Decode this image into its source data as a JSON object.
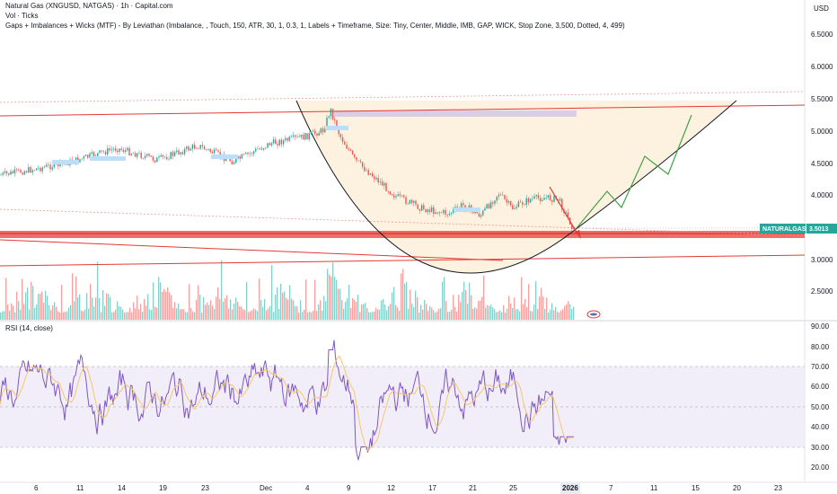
{
  "header": {
    "title": "Natural Gas (XNGUSD, NATGAS) · 1h · Capital.com",
    "volume_label": "Vol · Ticks",
    "indicator_label": "Gaps + Imbalances + Wicks (MTF) - By Leviathan (Imbalance, , Touch, 150, ATR, 30, 1, 0.3, 1, Labels + Timeframe, Size: Tiny, Center, Middle, IMB, GAP, WICK, Stop Zone, 3,500, Dotted, 4, 499)"
  },
  "currency": "USD",
  "price_axis": [
    "6.5000",
    "6.0000",
    "5.5000",
    "5.0000",
    "4.5000",
    "4.0000",
    "3.0000",
    "2.5000"
  ],
  "last_price": {
    "symbol": "NATURALGAS",
    "value": "3.5013"
  },
  "rsi": {
    "label": "RSI (14, close)",
    "axis": [
      "90.00",
      "80.00",
      "70.00",
      "60.00",
      "50.00",
      "40.00",
      "30.00",
      "20.00"
    ]
  },
  "time_axis": [
    "6",
    "11",
    "14",
    "19",
    "23",
    "Dec",
    "4",
    "9",
    "12",
    "17",
    "21",
    "25",
    "2026",
    "7",
    "11",
    "15",
    "20",
    "23"
  ],
  "colors": {
    "up": "#26a69a",
    "down": "#ef5350",
    "rsi": "#7e57c2",
    "rsi_ma": "#f7c66b",
    "projection": "#43a047",
    "cup_fill": "#fdf0dc",
    "trend": "#e53935",
    "gap_zone": "#ef5350"
  }
}
